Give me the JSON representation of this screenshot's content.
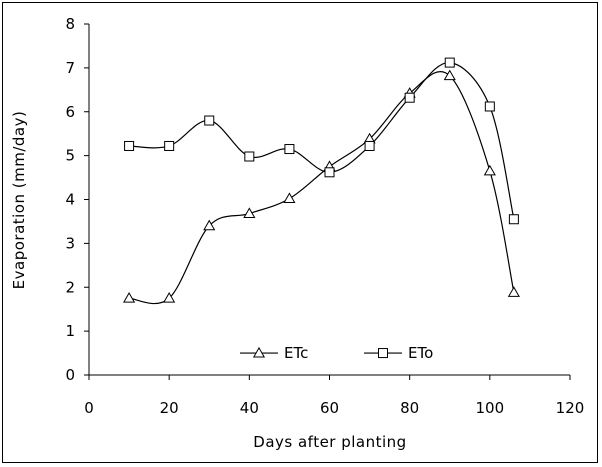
{
  "chart_data": {
    "type": "line",
    "title": "",
    "xlabel": "Days after planting",
    "ylabel": "Evaporation (mm/day)",
    "xlim": [
      0,
      120
    ],
    "ylim": [
      0,
      8
    ],
    "xticks": [
      0,
      20,
      40,
      60,
      80,
      100,
      120
    ],
    "yticks": [
      0,
      1,
      2,
      3,
      4,
      5,
      6,
      7,
      8
    ],
    "grid": false,
    "legend_position": "lower-center",
    "smooth": true,
    "series": [
      {
        "name": "ETc",
        "marker": "triangle",
        "color": "#000000",
        "x": [
          10,
          20,
          30,
          40,
          50,
          60,
          70,
          80,
          90,
          100,
          106
        ],
        "y": [
          1.75,
          1.75,
          3.4,
          3.68,
          4.02,
          4.75,
          5.38,
          6.42,
          6.82,
          4.65,
          1.88
        ]
      },
      {
        "name": "ETo",
        "marker": "square",
        "color": "#000000",
        "x": [
          10,
          20,
          30,
          40,
          50,
          60,
          70,
          80,
          90,
          100,
          106
        ],
        "y": [
          5.22,
          5.22,
          5.8,
          4.98,
          5.15,
          4.62,
          5.22,
          6.32,
          7.12,
          6.12,
          3.55
        ]
      }
    ]
  }
}
